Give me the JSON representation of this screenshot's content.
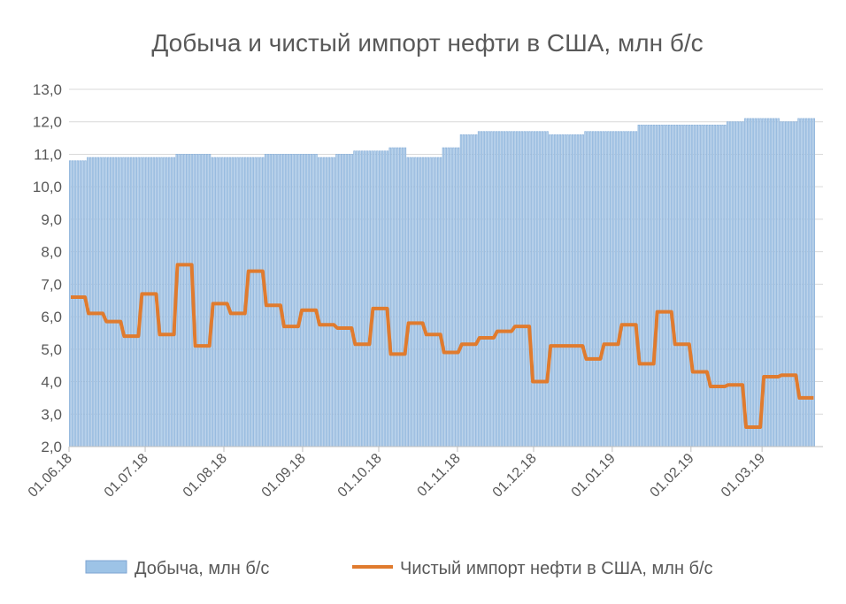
{
  "chart_data": {
    "type": "bar+line",
    "title": "Добыча и чистый импорт нефти в США, млн б/с",
    "ylim": [
      2.0,
      13.0
    ],
    "yticks": [
      "2,0",
      "3,0",
      "4,0",
      "5,0",
      "6,0",
      "7,0",
      "8,0",
      "9,0",
      "10,0",
      "11,0",
      "12,0",
      "13,0"
    ],
    "xticks": [
      "01.06.18",
      "01.07.18",
      "01.08.18",
      "01.09.18",
      "01.10.18",
      "01.11.18",
      "01.12.18",
      "01.01.19",
      "01.02.19",
      "01.03.19"
    ],
    "xlim": [
      "01.06.18",
      "25.03.19"
    ],
    "grid": true,
    "legend_position": "bottom",
    "x": [
      "01.06.18",
      "08.06.18",
      "15.06.18",
      "22.06.18",
      "29.06.18",
      "06.07.18",
      "13.07.18",
      "20.07.18",
      "27.07.18",
      "03.08.18",
      "10.08.18",
      "17.08.18",
      "24.08.18",
      "31.08.18",
      "07.09.18",
      "14.09.18",
      "21.09.18",
      "28.09.18",
      "05.10.18",
      "12.10.18",
      "19.10.18",
      "26.10.18",
      "02.11.18",
      "09.11.18",
      "16.11.18",
      "23.11.18",
      "30.11.18",
      "07.12.18",
      "14.12.18",
      "21.12.18",
      "28.12.18",
      "04.01.19",
      "11.01.19",
      "18.01.19",
      "25.01.19",
      "01.02.19",
      "08.02.19",
      "15.02.19",
      "22.02.19",
      "01.03.19",
      "08.03.19",
      "15.03.19"
    ],
    "series": [
      {
        "name": "Добыча, млн б/с",
        "type": "bar",
        "color": "#9dc3e6",
        "values": [
          10.8,
          10.9,
          10.9,
          10.9,
          10.9,
          10.9,
          11.0,
          11.0,
          10.9,
          10.9,
          10.9,
          11.0,
          11.0,
          11.0,
          10.9,
          11.0,
          11.1,
          11.1,
          11.2,
          10.9,
          10.9,
          11.2,
          11.6,
          11.7,
          11.7,
          11.7,
          11.7,
          11.6,
          11.6,
          11.7,
          11.7,
          11.7,
          11.9,
          11.9,
          11.9,
          11.9,
          11.9,
          12.0,
          12.1,
          12.1,
          12.0,
          12.1
        ]
      },
      {
        "name": "Чистый импорт нефти в США, млн б/с",
        "type": "line",
        "color": "#e07b2e",
        "values": [
          6.6,
          6.1,
          5.85,
          5.4,
          6.7,
          5.45,
          7.6,
          5.1,
          6.4,
          6.1,
          7.4,
          6.35,
          5.7,
          6.2,
          5.75,
          5.65,
          5.15,
          6.25,
          4.85,
          5.8,
          5.45,
          4.9,
          5.15,
          5.35,
          5.55,
          5.7,
          4.0,
          5.1,
          5.1,
          4.7,
          5.15,
          5.75,
          4.55,
          6.15,
          5.15,
          4.3,
          3.85,
          3.9,
          2.6,
          4.15,
          4.2,
          3.5
        ]
      }
    ]
  }
}
